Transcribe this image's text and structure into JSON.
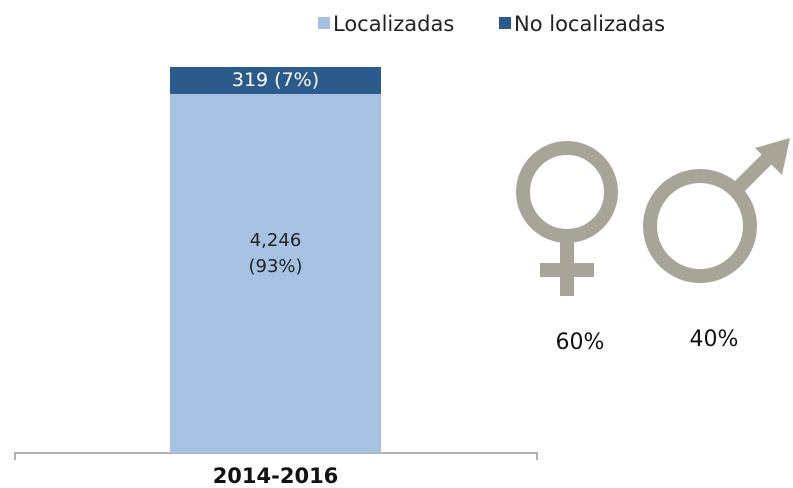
{
  "chart_data": {
    "type": "stacked_bar",
    "categories": [
      "2014-2016"
    ],
    "series": [
      {
        "name": "Localizadas",
        "color": "#a6c1e1",
        "values": [
          4246
        ],
        "value_labels": [
          "4,246 (93%)"
        ]
      },
      {
        "name": "No localizadas",
        "color": "#2b5b8c",
        "values": [
          319
        ],
        "value_labels": [
          "319 (7%)"
        ]
      }
    ],
    "annotations": [
      "60%",
      "40%"
    ]
  }
}
